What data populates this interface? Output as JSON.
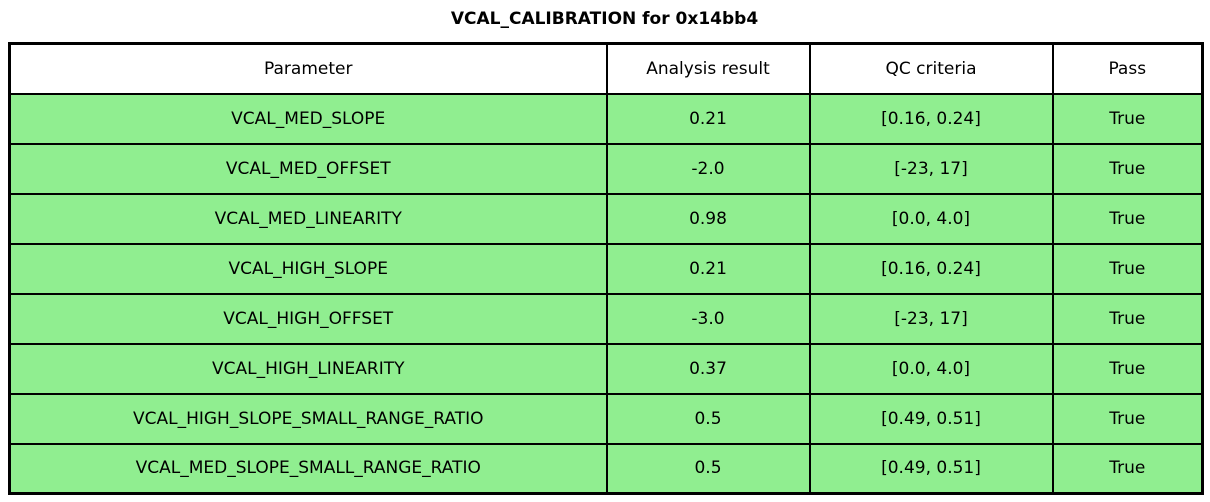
{
  "chart_data": {
    "type": "table",
    "title": "VCAL_CALIBRATION for 0x14bb4",
    "columns": [
      "Parameter",
      "Analysis result",
      "QC criteria",
      "Pass"
    ],
    "rows": [
      [
        "VCAL_MED_SLOPE",
        "0.21",
        "[0.16, 0.24]",
        "True"
      ],
      [
        "VCAL_MED_OFFSET",
        "-2.0",
        "[-23, 17]",
        "True"
      ],
      [
        "VCAL_MED_LINEARITY",
        "0.98",
        "[0.0, 4.0]",
        "True"
      ],
      [
        "VCAL_HIGH_SLOPE",
        "0.21",
        "[0.16, 0.24]",
        "True"
      ],
      [
        "VCAL_HIGH_OFFSET",
        "-3.0",
        "[-23, 17]",
        "True"
      ],
      [
        "VCAL_HIGH_LINEARITY",
        "0.37",
        "[0.0, 4.0]",
        "True"
      ],
      [
        "VCAL_HIGH_SLOPE_SMALL_RANGE_RATIO",
        "0.5",
        "[0.49, 0.51]",
        "True"
      ],
      [
        "VCAL_MED_SLOPE_SMALL_RANGE_RATIO",
        "0.5",
        "[0.49, 0.51]",
        "True"
      ]
    ],
    "layout": {
      "header_row_background": "#ffffff",
      "data_row_background": "#90ee90",
      "all_rows_pass": true
    }
  },
  "colors": {
    "pass_row_background": "#90ee90",
    "header_background": "#ffffff",
    "border": "#000000",
    "text": "#000000"
  }
}
